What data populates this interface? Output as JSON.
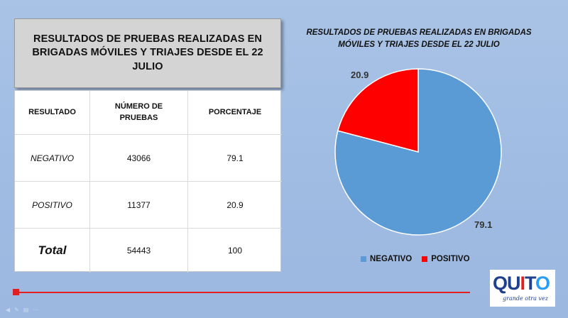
{
  "table": {
    "title": "RESULTADOS DE PRUEBAS REALIZADAS EN BRIGADAS MÓVILES Y TRIAJES DESDE EL 22 JULIO",
    "headers": [
      "RESULTADO",
      "NÚMERO DE PRUEBAS",
      "PORCENTAJE"
    ],
    "rows": [
      {
        "resultado": "NEGATIVO",
        "numero": "43066",
        "porcentaje": "79.1"
      },
      {
        "resultado": "POSITIVO",
        "numero": "11377",
        "porcentaje": "20.9"
      },
      {
        "resultado": "Total",
        "numero": "54443",
        "porcentaje": "100"
      }
    ]
  },
  "chart_data": {
    "type": "pie",
    "title": "RESULTADOS DE PRUEBAS REALIZADAS EN BRIGADAS MÓVILES Y TRIAJES DESDE EL 22 JULIO",
    "categories": [
      "NEGATIVO",
      "POSITIVO"
    ],
    "values": [
      79.1,
      20.9
    ],
    "data_labels": [
      "79.1",
      "20.9"
    ],
    "colors": [
      "#5b9bd5",
      "#ff0000"
    ],
    "legend": "bottom"
  },
  "logo": {
    "wordmark": "QUITO",
    "tagline": "grande otra vez"
  },
  "colors": {
    "background": "#a9c3e6",
    "accent_line": "#e02020"
  }
}
